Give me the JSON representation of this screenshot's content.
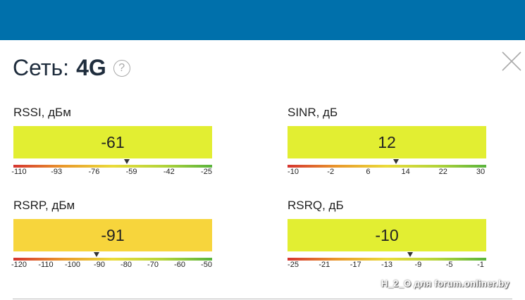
{
  "header": {
    "title_prefix": "Сеть:",
    "title_value": "4G"
  },
  "colors": {
    "topbar": "#0070ab",
    "meter_lime": "#e2ee32",
    "meter_yellow": "#f7d53c",
    "scale_red": "#d5332f",
    "scale_orange": "#e9982b",
    "scale_yellow": "#eadb3a",
    "scale_green": "#58b33c"
  },
  "metrics": [
    {
      "label": "RSSI, дБм",
      "value": "-61",
      "color": "#e2ee32",
      "scale": [
        "-110",
        "-93",
        "-76",
        "-59",
        "-42",
        "-25"
      ],
      "level": 0.576
    },
    {
      "label": "SINR, дБ",
      "value": "12",
      "color": "#e2ee32",
      "scale": [
        "-10",
        "-2",
        "6",
        "14",
        "22",
        "30"
      ],
      "level": 0.55
    },
    {
      "label": "RSRP, дБм",
      "value": "-91",
      "color": "#f7d53c",
      "scale": [
        "-120",
        "-110",
        "-100",
        "-90",
        "-80",
        "-70",
        "-60",
        "-50"
      ],
      "level": 0.414
    },
    {
      "label": "RSRQ, дБ",
      "value": "-10",
      "color": "#e2ee32",
      "scale": [
        "-25",
        "-21",
        "-17",
        "-13",
        "-9",
        "-5",
        "-1"
      ],
      "level": 0.625
    }
  ],
  "watermark": "H_2_O для forum.onliner.by"
}
